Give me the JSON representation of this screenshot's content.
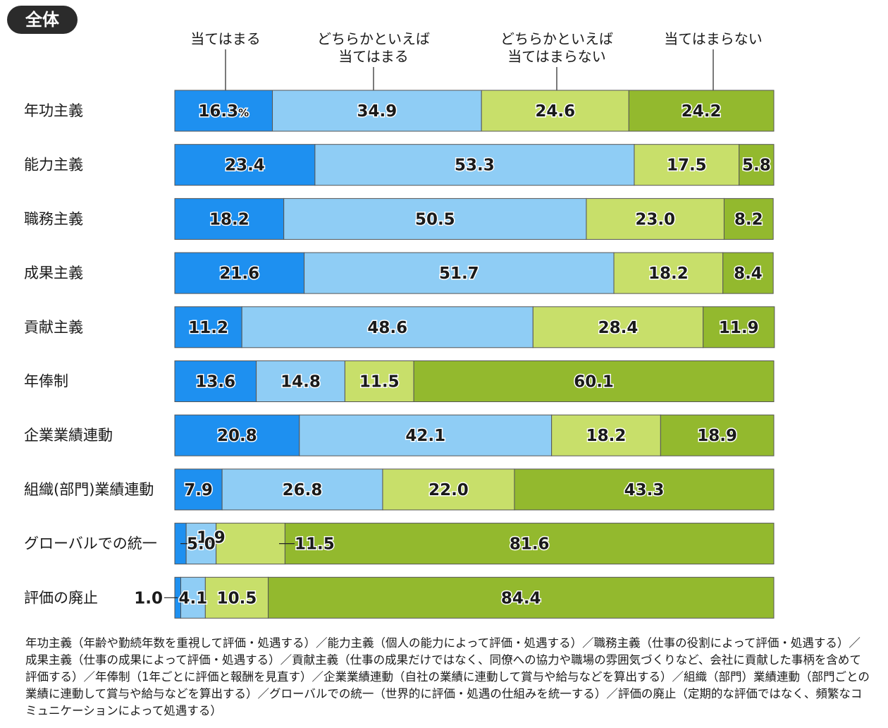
{
  "badge": "全体",
  "chart_data": {
    "type": "bar",
    "orientation": "horizontal",
    "stacked": true,
    "percent_symbol": "%",
    "categories": [
      "年功主義",
      "能力主義",
      "職務主義",
      "成果主義",
      "貢献主義",
      "年俸制",
      "企業業績連動",
      "組織(部門)業績連動",
      "グローバルでの統一",
      "評価の廃止"
    ],
    "series": [
      {
        "name": "当てはまる",
        "color": "#1e90f0",
        "values": [
          16.3,
          23.4,
          18.2,
          21.6,
          11.2,
          13.6,
          20.8,
          7.9,
          1.9,
          1.0
        ]
      },
      {
        "name": "どちらかといえば\n当てはまる",
        "color": "#8fcdf5",
        "values": [
          34.9,
          53.3,
          50.5,
          51.7,
          48.6,
          14.8,
          42.1,
          26.8,
          5.0,
          4.1
        ]
      },
      {
        "name": "どちらかといえば\n当てはまらない",
        "color": "#c8df6a",
        "values": [
          24.6,
          17.5,
          23.0,
          18.2,
          28.4,
          11.5,
          18.2,
          22.0,
          11.5,
          10.5
        ]
      },
      {
        "name": "当てはまらない",
        "color": "#93b92e",
        "values": [
          24.2,
          5.8,
          8.2,
          8.4,
          11.9,
          60.1,
          18.9,
          43.3,
          81.6,
          84.4
        ]
      }
    ],
    "xlim": [
      0,
      100
    ]
  },
  "note": "年功主義（年齢や勤続年数を重視して評価・処遇する）／能力主義（個人の能力によって評価・処遇する）／職務主義（仕事の役割によって評価・処遇する）／成果主義（仕事の成果によって評価・処遇する）／貢献主義（仕事の成果だけではなく、同僚への協力や職場の雰囲気づくりなど、会社に貢献した事柄を含めて評価する）／年俸制（1年ごとに評価と報酬を見直す）／企業業績連動（自社の業績に連動して賞与や給与などを算出する）／組織（部門）業績連動（部門ごとの業績に連動して賞与や給与などを算出する）／グローバルでの統一（世界的に評価・処遇の仕組みを統一する）／評価の廃止（定期的な評価ではなく、頻繁なコミュニケーションによって処遇する）"
}
